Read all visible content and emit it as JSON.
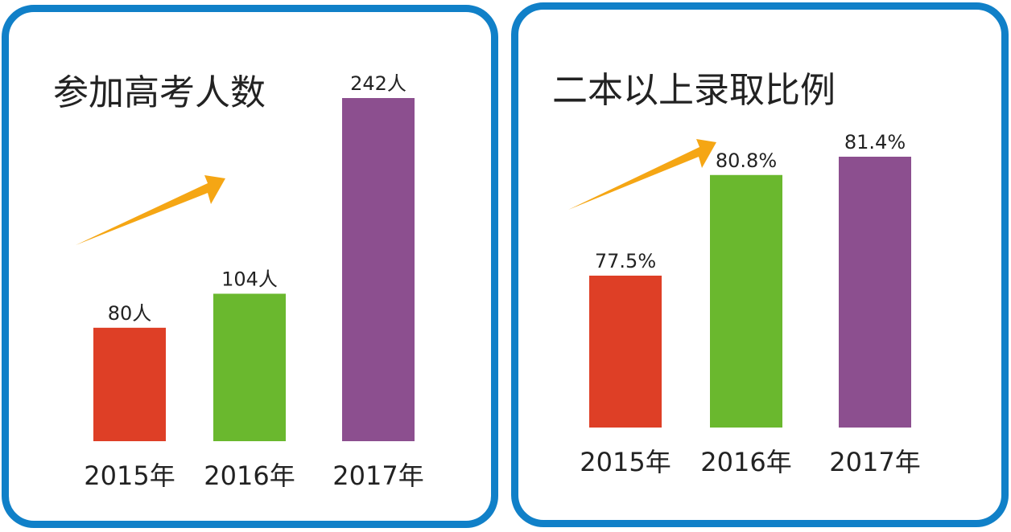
{
  "chart_data": [
    {
      "type": "bar",
      "title": "参加高考人数",
      "categories": [
        "2015年",
        "2016年",
        "2017年"
      ],
      "values": [
        80,
        104,
        242
      ],
      "value_labels": [
        "80人",
        "104人",
        "242人"
      ],
      "colors": [
        "#de3f26",
        "#6ab82e",
        "#8c4f8f"
      ],
      "arrow_color": "#f5a614",
      "ylim": [
        0,
        242
      ],
      "grid": false,
      "legend": "none"
    },
    {
      "type": "bar",
      "title": "二本以上录取比例",
      "categories": [
        "2015年",
        "2016年",
        "2017年"
      ],
      "values": [
        77.5,
        80.8,
        81.4
      ],
      "value_labels": [
        "77.5%",
        "80.8%",
        "81.4%"
      ],
      "colors": [
        "#de3f26",
        "#6ab82e",
        "#8c4f8f"
      ],
      "arrow_color": "#f5a614",
      "grid": false,
      "legend": "none"
    }
  ]
}
